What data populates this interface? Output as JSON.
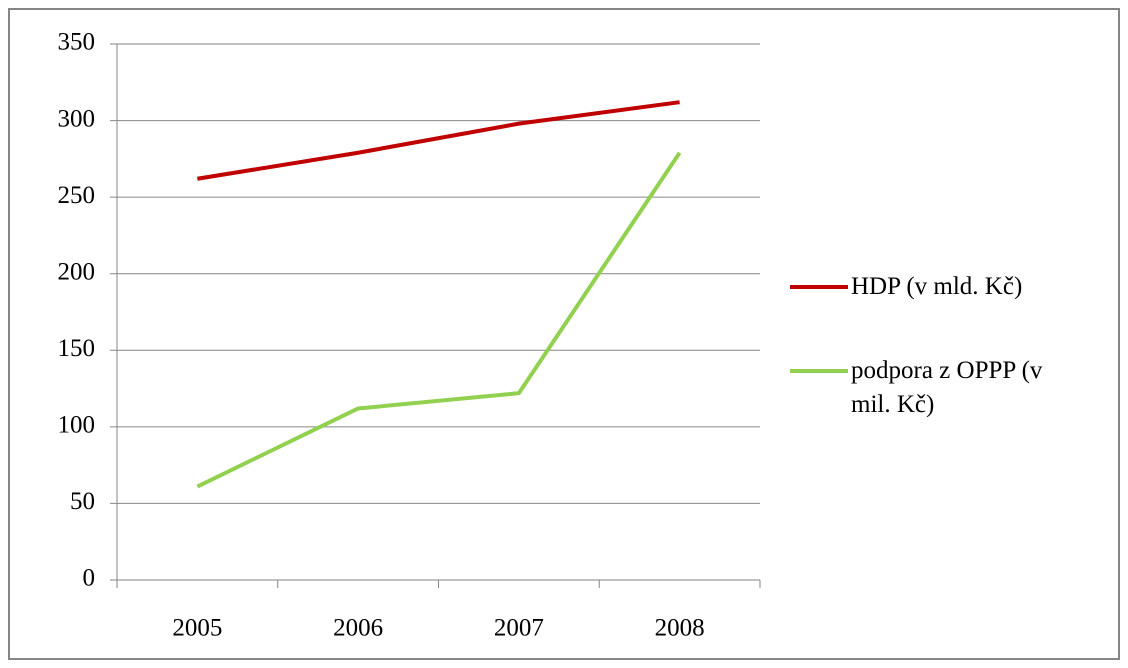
{
  "chart_data": {
    "type": "line",
    "categories": [
      "2005",
      "2006",
      "2007",
      "2008"
    ],
    "series": [
      {
        "name": "HDP (v mld. Kč)",
        "color": "#c00000",
        "values": [
          262,
          279,
          298,
          312
        ]
      },
      {
        "name": "podpora z OPPP (v mil. Kč)",
        "color": "#92d050",
        "values": [
          61,
          112,
          122,
          279
        ]
      }
    ],
    "ylim": [
      0,
      350
    ],
    "yticks": [
      0,
      50,
      100,
      150,
      200,
      250,
      300,
      350
    ],
    "grid": true,
    "legend": "right"
  }
}
